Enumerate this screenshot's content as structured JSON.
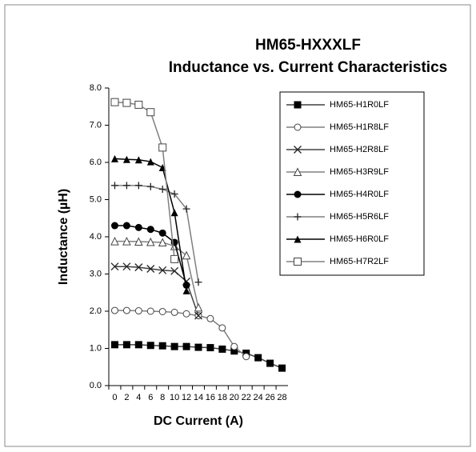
{
  "chart_data": {
    "type": "line",
    "title": "HM65-HXXXLF",
    "subtitle": "Inductance vs. Current Characteristics",
    "x_label": "DC Current (A)",
    "y_label": "Inductance (µH)",
    "categories": [
      "0",
      "2",
      "4",
      "6",
      "8",
      "10",
      "12",
      "14",
      "16",
      "18",
      "20",
      "22",
      "24",
      "26",
      "28"
    ],
    "ylim": [
      0,
      8
    ],
    "yticks": [
      {
        "value": 0,
        "label": "0.0"
      },
      {
        "value": 1,
        "label": "1.0"
      },
      {
        "value": 2,
        "label": "2.0"
      },
      {
        "value": 3,
        "label": "3.0"
      },
      {
        "value": 4,
        "label": "4.0"
      },
      {
        "value": 5,
        "label": "5.0"
      },
      {
        "value": 6,
        "label": "6.0"
      },
      {
        "value": 7,
        "label": "7.0"
      },
      {
        "value": 8,
        "label": "8.0"
      }
    ],
    "legend": "upper right",
    "series": [
      {
        "name": "HM65-H1R0LF",
        "color": "#404040",
        "marker": "square-filled",
        "values": [
          1.1,
          1.1,
          1.1,
          1.08,
          1.07,
          1.05,
          1.05,
          1.03,
          1.02,
          0.98,
          0.93,
          0.87,
          0.75,
          0.6,
          0.47
        ]
      },
      {
        "name": "HM65-H1R8LF",
        "color": "#808080",
        "marker": "circle-open",
        "values": [
          2.02,
          2.02,
          2.01,
          2.0,
          1.99,
          1.97,
          1.93,
          1.88,
          1.8,
          1.55,
          1.05,
          0.78,
          null,
          null,
          null
        ]
      },
      {
        "name": "HM65-H2R8LF",
        "color": "#404040",
        "marker": "x",
        "values": [
          3.2,
          3.2,
          3.18,
          3.14,
          3.1,
          3.08,
          2.8,
          1.88,
          null,
          null,
          null,
          null,
          null,
          null,
          null
        ]
      },
      {
        "name": "HM65-H3R9LF",
        "color": "#808080",
        "marker": "triangle-open",
        "values": [
          3.88,
          3.88,
          3.87,
          3.86,
          3.85,
          3.75,
          3.5,
          2.1,
          null,
          null,
          null,
          null,
          null,
          null,
          null
        ]
      },
      {
        "name": "HM65-H4R0LF",
        "color": "#000000",
        "marker": "circle-filled",
        "values": [
          4.3,
          4.3,
          4.25,
          4.2,
          4.1,
          3.85,
          2.7,
          null,
          null,
          null,
          null,
          null,
          null,
          null,
          null
        ]
      },
      {
        "name": "HM65-H5R6LF",
        "color": "#808080",
        "marker": "plus",
        "values": [
          5.38,
          5.38,
          5.38,
          5.35,
          5.28,
          5.15,
          4.75,
          2.78,
          null,
          null,
          null,
          null,
          null,
          null,
          null
        ]
      },
      {
        "name": "HM65-H6R0LF",
        "color": "#000000",
        "marker": "triangle-filled",
        "values": [
          6.1,
          6.08,
          6.07,
          6.02,
          5.86,
          4.65,
          2.55,
          null,
          null,
          null,
          null,
          null,
          null,
          null,
          null
        ]
      },
      {
        "name": "HM65-H7R2LF",
        "color": "#808080",
        "marker": "square-open",
        "values": [
          7.62,
          7.6,
          7.55,
          7.35,
          6.4,
          3.4,
          null,
          null,
          null,
          null,
          null,
          null,
          null,
          null,
          null
        ]
      }
    ]
  }
}
